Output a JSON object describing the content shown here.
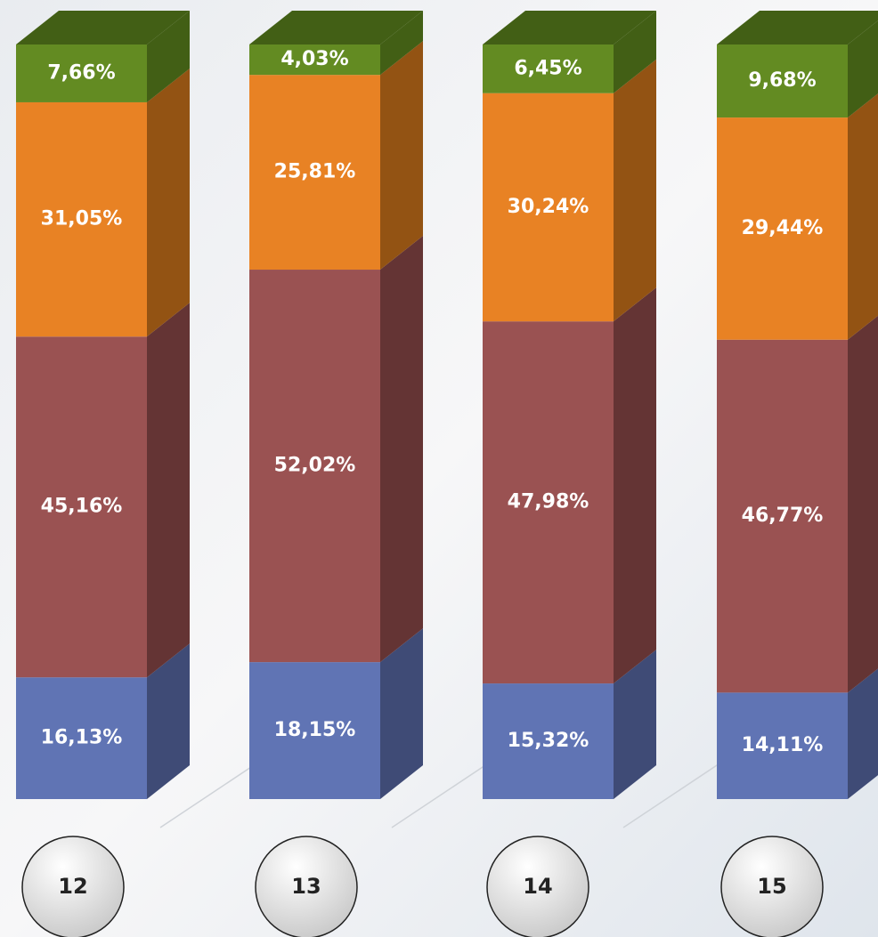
{
  "chart_data": {
    "type": "bar3d_stacked",
    "categories": [
      "12",
      "13",
      "14",
      "15"
    ],
    "series": [
      {
        "color": "#6074b4",
        "side_color": "#3f4b76",
        "values": [
          16.13,
          18.15,
          15.32,
          14.11
        ],
        "value_labels": [
          "16,13%",
          "18,15%",
          "15,32%",
          "14,11%"
        ]
      },
      {
        "color": "#9a5252",
        "side_color": "#643434",
        "values": [
          45.16,
          52.02,
          47.98,
          46.77
        ],
        "value_labels": [
          "45,16%",
          "52,02%",
          "47,98%",
          "46,77%"
        ]
      },
      {
        "color": "#e88224",
        "side_color": "#935313",
        "values": [
          31.05,
          25.81,
          30.24,
          29.44
        ],
        "value_labels": [
          "31,05%",
          "25,81%",
          "30,24%",
          "29,44%"
        ]
      },
      {
        "color": "#638b22",
        "side_color": "#425f15",
        "values": [
          7.66,
          4.03,
          6.45,
          9.68
        ],
        "value_labels": [
          "7,66%",
          "4,03%",
          "6,45%",
          "9,68%"
        ]
      }
    ]
  }
}
